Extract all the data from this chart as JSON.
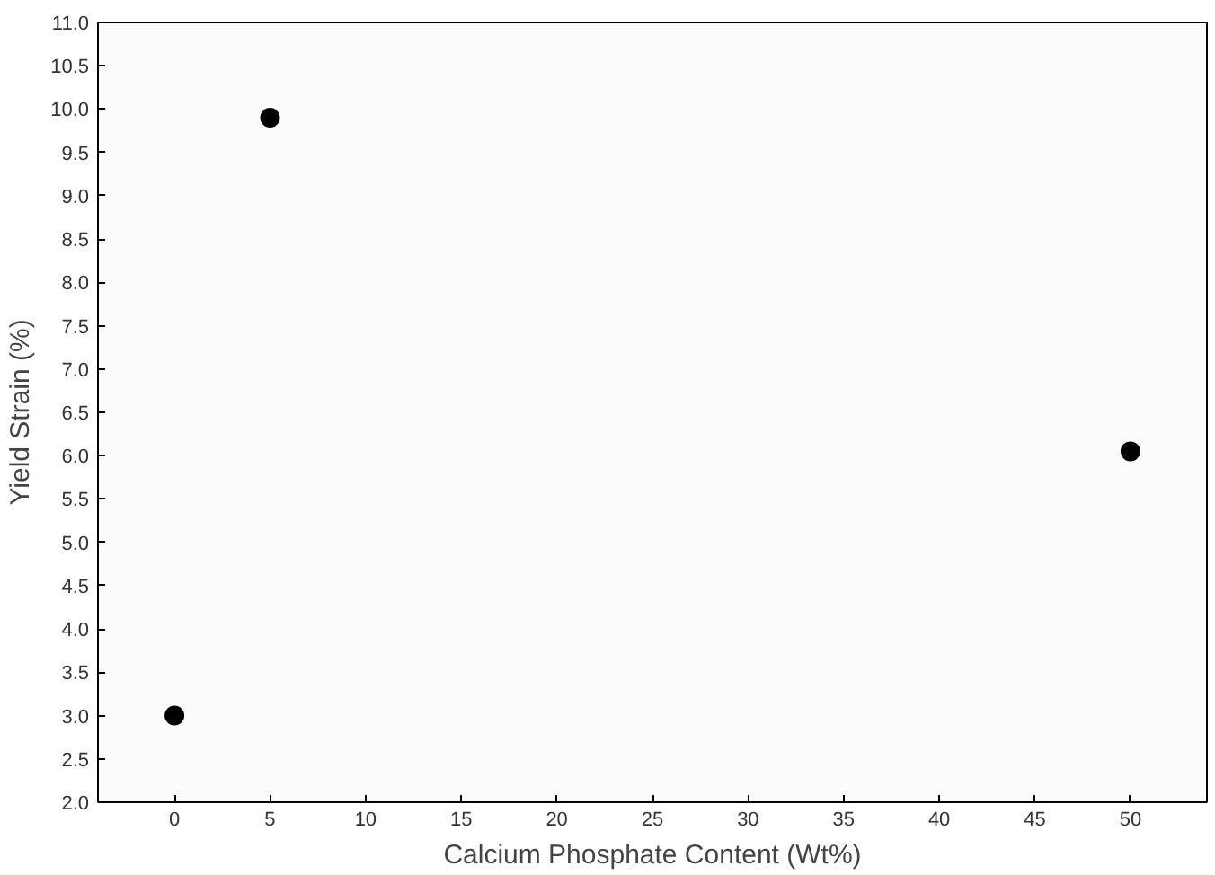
{
  "chart_data": {
    "type": "scatter",
    "xlabel": "Calcium Phosphate Content (Wt%)",
    "ylabel": "Yield Strain (%)",
    "x": [
      0,
      5,
      50
    ],
    "series": [
      {
        "color": "#000000",
        "values": [
          3.0,
          9.9,
          6.05
        ]
      }
    ],
    "marker": "circle",
    "xlim": [
      -4,
      54
    ],
    "ylim": [
      2.0,
      11.0
    ],
    "xticks": [
      0,
      5,
      10,
      15,
      20,
      25,
      30,
      35,
      40,
      45,
      50
    ],
    "yticks": [
      {
        "value": 2,
        "label": "2.0"
      },
      {
        "value": 2.5,
        "label": "2.5"
      },
      {
        "value": 3,
        "label": "3.0"
      },
      {
        "value": 3.5,
        "label": "3.5"
      },
      {
        "value": 4,
        "label": "4.0"
      },
      {
        "value": 4.5,
        "label": "4.5"
      },
      {
        "value": 5,
        "label": "5.0"
      },
      {
        "value": 5.5,
        "label": "5.5"
      },
      {
        "value": 6,
        "label": "6.0"
      },
      {
        "value": 6.5,
        "label": "6.5"
      },
      {
        "value": 7,
        "label": "7.0"
      },
      {
        "value": 7.5,
        "label": "7.5"
      },
      {
        "value": 8,
        "label": "8.0"
      },
      {
        "value": 8.5,
        "label": "8.5"
      },
      {
        "value": 9,
        "label": "9.0"
      },
      {
        "value": 9.5,
        "label": "9.5"
      },
      {
        "value": 10,
        "label": "10.0"
      },
      {
        "value": 10.5,
        "label": "10.5"
      },
      {
        "value": 11,
        "label": "11.0"
      }
    ],
    "grid": false
  }
}
